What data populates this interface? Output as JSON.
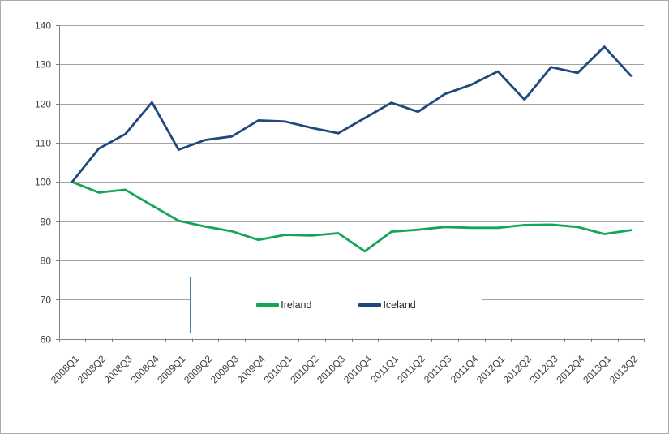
{
  "chart_data": {
    "type": "line",
    "title": "",
    "categories": [
      "2008Q1",
      "2008Q2",
      "2008Q3",
      "2008Q4",
      "2009Q1",
      "2009Q2",
      "2009Q3",
      "2009Q4",
      "2010Q1",
      "2010Q2",
      "2010Q3",
      "2010Q4",
      "2011Q1",
      "2011Q2",
      "2011Q3",
      "2011Q4",
      "2012Q1",
      "2012Q2",
      "2012Q3",
      "2012Q4",
      "2013Q1",
      "2013Q2"
    ],
    "series": [
      {
        "name": "Ireland",
        "color": "#14a558",
        "values": [
          100,
          97.3,
          98,
          94,
          90.1,
          88.6,
          87.4,
          85.2,
          86.5,
          86.3,
          86.9,
          82.3,
          87.3,
          87.8,
          88.5,
          88.3,
          88.3,
          89,
          89.1,
          88.5,
          86.7,
          87.7
        ]
      },
      {
        "name": "Iceland",
        "color": "#1f497d",
        "values": [
          100,
          108.5,
          112.2,
          120.3,
          108.2,
          110.7,
          111.6,
          115.7,
          115.4,
          113.8,
          112.4,
          116.3,
          120.2,
          117.9,
          122.4,
          124.8,
          128.2,
          121,
          129.3,
          127.8,
          134.5,
          127.1
        ]
      }
    ],
    "xlabel": "",
    "ylabel": "",
    "ylim": [
      60,
      140
    ],
    "y_ticks": [
      60,
      70,
      80,
      90,
      100,
      110,
      120,
      130,
      140
    ],
    "grid": "horizontal",
    "legend_position": "inside-bottom-center-boxed"
  },
  "colors": {
    "gridline": "#a3a3a3",
    "axis": "#808080",
    "tick_text": "#404040",
    "legend_border": "#4f7d9e",
    "background": "#ffffff"
  }
}
